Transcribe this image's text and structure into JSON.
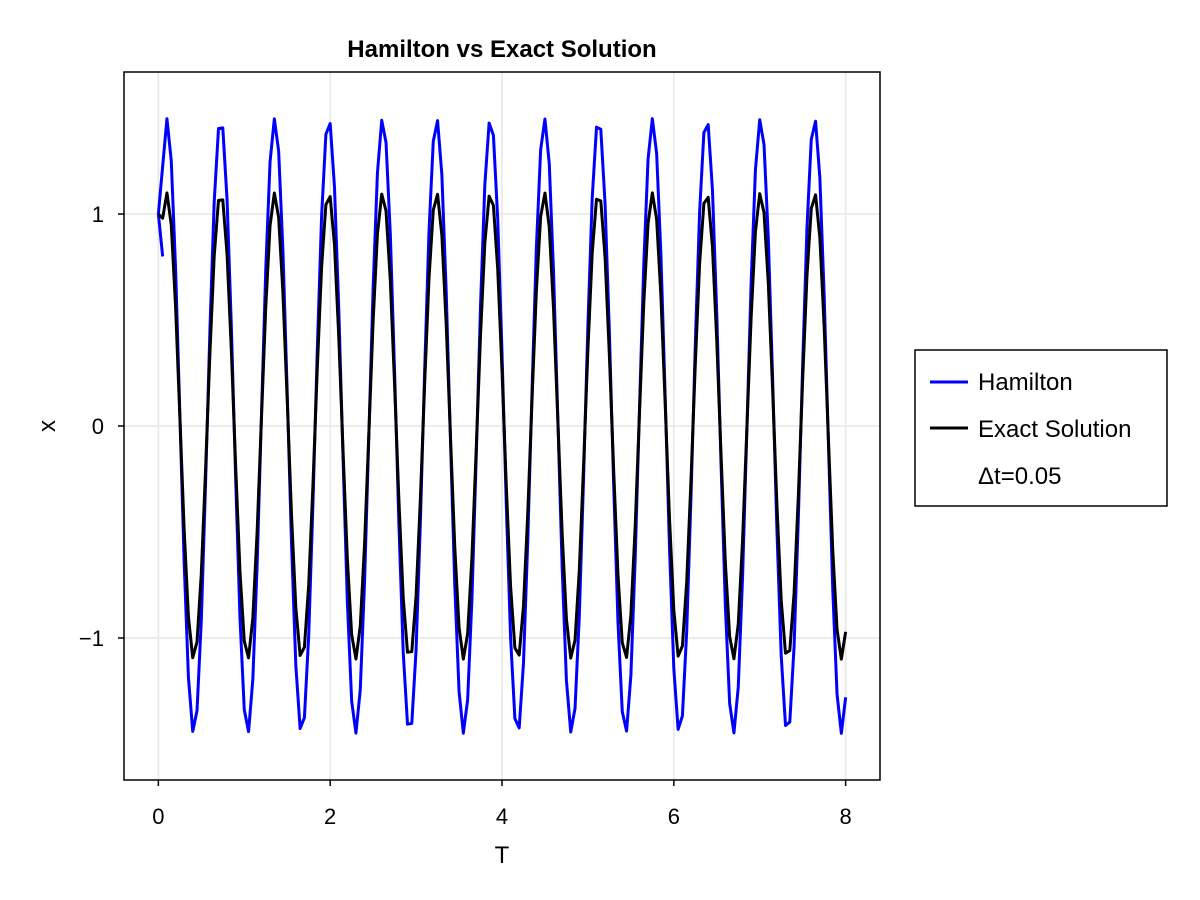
{
  "chart_data": {
    "type": "line",
    "title": "Hamilton vs Exact Solution",
    "xlabel": "T",
    "ylabel": "x",
    "xlim": [
      -0.4,
      8.4
    ],
    "ylim": [
      -1.67,
      1.67
    ],
    "xticks": [
      0,
      2,
      4,
      6,
      8
    ],
    "xtick_labels": [
      "0",
      "2",
      "4",
      "6",
      "8"
    ],
    "yticks": [
      -1,
      0,
      1
    ],
    "ytick_labels": [
      "−1",
      "0",
      "1"
    ],
    "grid": true,
    "legend_position": "right",
    "legend_extra": "Δt=0.05",
    "dt": 0.05,
    "t_max": 8.0,
    "series": [
      {
        "name": "Hamilton",
        "color": "#0000ff",
        "amplitude": 1.45,
        "omega": 10.0,
        "start": 1.0,
        "second": 0.8
      },
      {
        "name": "Exact Solution",
        "color": "#000000",
        "amplitude": 1.1,
        "omega": 10.0,
        "start": 1.0
      }
    ]
  }
}
